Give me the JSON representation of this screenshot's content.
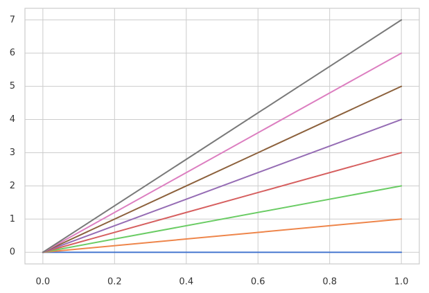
{
  "chart_data": {
    "type": "line",
    "x": [
      0,
      1
    ],
    "series": [
      {
        "color": "#4878d0",
        "values": [
          0,
          0
        ]
      },
      {
        "color": "#ee854a",
        "values": [
          0,
          1
        ]
      },
      {
        "color": "#6acc64",
        "values": [
          0,
          2
        ]
      },
      {
        "color": "#d65f5f",
        "values": [
          0,
          3
        ]
      },
      {
        "color": "#956cb4",
        "values": [
          0,
          4
        ]
      },
      {
        "color": "#8c613c",
        "values": [
          0,
          5
        ]
      },
      {
        "color": "#dc7ec0",
        "values": [
          0,
          6
        ]
      },
      {
        "color": "#797979",
        "values": [
          0,
          7
        ]
      }
    ],
    "xlim": [
      -0.05,
      1.05
    ],
    "ylim": [
      -0.35,
      7.35
    ],
    "xticks": [
      {
        "value": 0,
        "label": "0.0"
      },
      0.2,
      0.4,
      0.6,
      0.8,
      {
        "value": 1,
        "label": "1.0"
      }
    ],
    "yticks": [
      0,
      1,
      2,
      3,
      4,
      5,
      6,
      7
    ],
    "grid": true
  }
}
